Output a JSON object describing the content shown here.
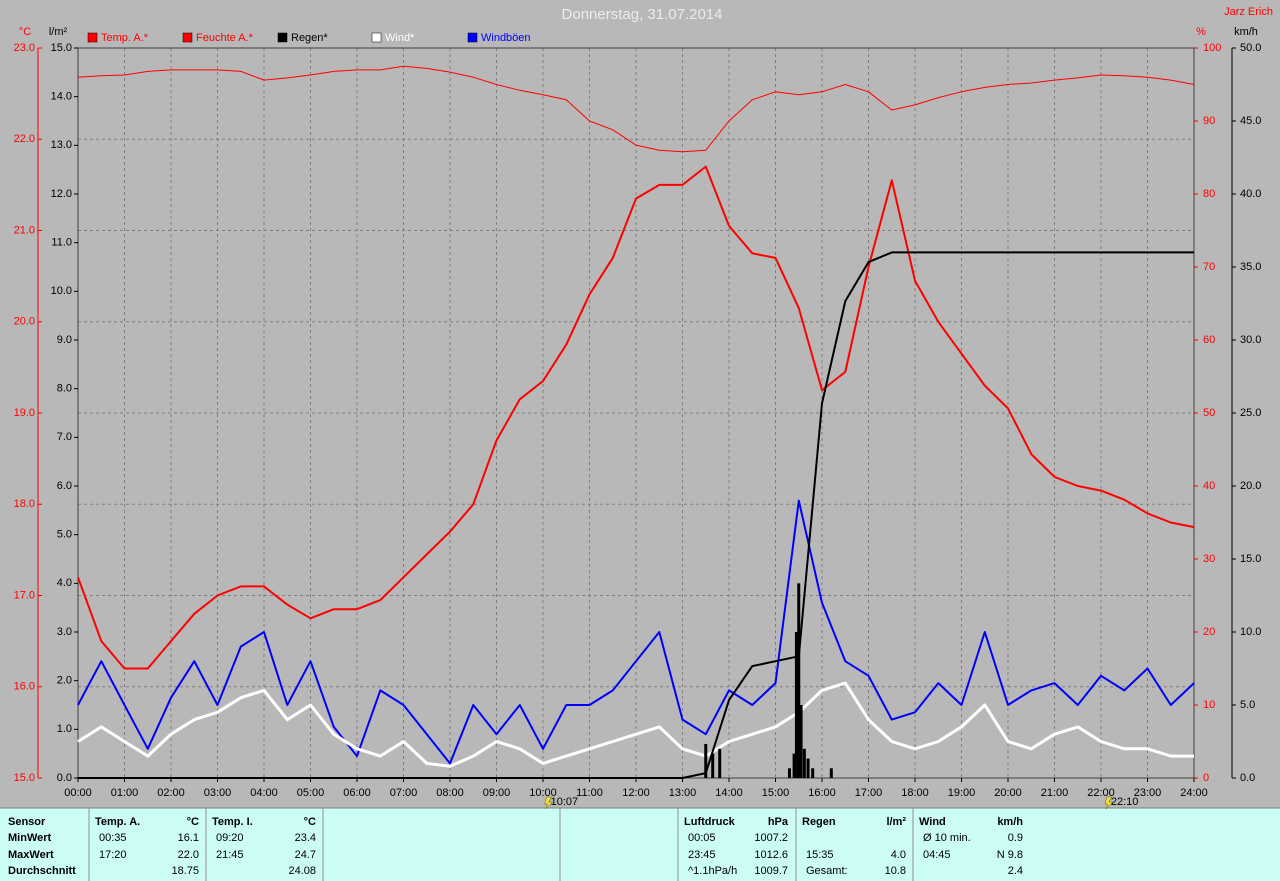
{
  "chart_data": {
    "type": "line",
    "title": "Donnerstag, 31.07.2014",
    "author": "Jarz Erich",
    "ylabel": "°C",
    "y2label": "%",
    "y3label": "l/m²",
    "y4label": "km/h",
    "x": [
      0,
      0.5,
      1,
      1.5,
      2,
      2.5,
      3,
      3.5,
      4,
      4.5,
      5,
      5.5,
      6,
      6.5,
      7,
      7.5,
      8,
      8.5,
      9,
      9.5,
      10,
      10.5,
      11,
      11.5,
      12,
      12.5,
      13,
      13.5,
      14,
      14.5,
      15,
      15.5,
      16,
      16.5,
      17,
      17.5,
      18,
      18.5,
      19,
      19.5,
      20,
      20.5,
      21,
      21.5,
      22,
      22.5,
      23,
      23.5,
      24
    ],
    "xlim": [
      0,
      24
    ],
    "xticks": [
      {
        "value": 0,
        "label": "00:00"
      },
      {
        "value": 1,
        "label": "01:00"
      },
      {
        "value": 2,
        "label": "02:00"
      },
      {
        "value": 3,
        "label": "03:00"
      },
      {
        "value": 4,
        "label": "04:00"
      },
      {
        "value": 5,
        "label": "05:00"
      },
      {
        "value": 6,
        "label": "06:00"
      },
      {
        "value": 7,
        "label": "07:00"
      },
      {
        "value": 8,
        "label": "08:00"
      },
      {
        "value": 9,
        "label": "09:00"
      },
      {
        "value": 10,
        "label": "10:00"
      },
      {
        "value": 11,
        "label": "11:00"
      },
      {
        "value": 12,
        "label": "12:00"
      },
      {
        "value": 13,
        "label": "13:00"
      },
      {
        "value": 14,
        "label": "14:00"
      },
      {
        "value": 15,
        "label": "15:00"
      },
      {
        "value": 16,
        "label": "16:00"
      },
      {
        "value": 17,
        "label": "17:00"
      },
      {
        "value": 18,
        "label": "18:00"
      },
      {
        "value": 19,
        "label": "19:00"
      },
      {
        "value": 20,
        "label": "20:00"
      },
      {
        "value": 21,
        "label": "21:00"
      },
      {
        "value": 22,
        "label": "22:00"
      },
      {
        "value": 23,
        "label": "23:00"
      },
      {
        "value": 24,
        "label": "24:00"
      }
    ],
    "ylim": [
      15,
      23
    ],
    "yticks": [
      {
        "value": 15,
        "label": "15.0"
      },
      {
        "value": 16,
        "label": "16.0"
      },
      {
        "value": 17,
        "label": "17.0"
      },
      {
        "value": 18,
        "label": "18.0"
      },
      {
        "value": 19,
        "label": "19.0"
      },
      {
        "value": 20,
        "label": "20.0"
      },
      {
        "value": 21,
        "label": "21.0"
      },
      {
        "value": 22,
        "label": "22.0"
      },
      {
        "value": 23,
        "label": "23.0"
      }
    ],
    "y2lim": [
      0,
      100
    ],
    "y2ticks": [
      0,
      10,
      20,
      30,
      40,
      50,
      60,
      70,
      80,
      90,
      100
    ],
    "y3lim": [
      0,
      15
    ],
    "y3ticks": [
      {
        "value": 0,
        "label": "0.0"
      },
      {
        "value": 1,
        "label": "1.0"
      },
      {
        "value": 2,
        "label": "2.0"
      },
      {
        "value": 3,
        "label": "3.0"
      },
      {
        "value": 4,
        "label": "4.0"
      },
      {
        "value": 5,
        "label": "5.0"
      },
      {
        "value": 6,
        "label": "6.0"
      },
      {
        "value": 7,
        "label": "7.0"
      },
      {
        "value": 8,
        "label": "8.0"
      },
      {
        "value": 9,
        "label": "9.0"
      },
      {
        "value": 10,
        "label": "10.0"
      },
      {
        "value": 11,
        "label": "11.0"
      },
      {
        "value": 12,
        "label": "12.0"
      },
      {
        "value": 13,
        "label": "13.0"
      },
      {
        "value": 14,
        "label": "14.0"
      },
      {
        "value": 15,
        "label": "15.0"
      }
    ],
    "y4lim": [
      0,
      50
    ],
    "y4ticks": [
      {
        "value": 0,
        "label": "0.0"
      },
      {
        "value": 5,
        "label": "5.0"
      },
      {
        "value": 10,
        "label": "10.0"
      },
      {
        "value": 15,
        "label": "15.0"
      },
      {
        "value": 20,
        "label": "20.0"
      },
      {
        "value": 25,
        "label": "25.0"
      },
      {
        "value": 30,
        "label": "30.0"
      },
      {
        "value": 35,
        "label": "35.0"
      },
      {
        "value": 40,
        "label": "40.0"
      },
      {
        "value": 45,
        "label": "45.0"
      },
      {
        "value": 50,
        "label": "50.0"
      }
    ],
    "grid": true,
    "series": [
      {
        "name": "Temp. A.*",
        "color": "#ff0000",
        "axis": "y",
        "width": 2,
        "values": [
          17.2,
          16.5,
          16.2,
          16.2,
          16.5,
          16.8,
          17.0,
          17.1,
          17.1,
          16.9,
          16.75,
          16.85,
          16.85,
          16.95,
          17.2,
          17.45,
          17.7,
          18.0,
          18.7,
          19.15,
          19.35,
          19.75,
          20.3,
          20.7,
          21.35,
          21.5,
          21.5,
          21.7,
          21.05,
          20.75,
          20.7,
          20.15,
          19.25,
          19.45,
          20.6,
          21.55,
          20.45,
          20.0,
          19.65,
          19.3,
          19.05,
          18.55,
          18.3,
          18.2,
          18.15,
          18.05,
          17.9,
          17.8,
          17.75
        ]
      },
      {
        "name": "Feuchte A.*",
        "color": "#ff0000",
        "axis": "y2",
        "width": 1,
        "values": [
          96,
          96.2,
          96.3,
          96.8,
          97,
          97,
          97,
          96.8,
          95.6,
          95.9,
          96.3,
          96.8,
          97,
          97,
          97.5,
          97.2,
          96.7,
          96,
          95,
          94.2,
          93.6,
          92.9,
          90,
          88.8,
          86.7,
          86,
          85.8,
          86,
          90,
          92.9,
          94,
          93.6,
          94,
          95,
          94,
          91.5,
          92.2,
          93.2,
          94,
          94.6,
          95,
          95.2,
          95.6,
          95.9,
          96.3,
          96.2,
          96,
          95.6,
          95
        ]
      },
      {
        "name": "Regen*",
        "color": "#000000",
        "axis": "y3",
        "width": 2,
        "values": [
          0,
          0,
          0,
          0,
          0,
          0,
          0,
          0,
          0,
          0,
          0,
          0,
          0,
          0,
          0,
          0,
          0,
          0,
          0,
          0,
          0,
          0,
          0,
          0,
          0,
          0,
          0,
          0.1,
          1.6,
          2.3,
          2.4,
          2.5,
          7.7,
          9.8,
          10.6,
          10.8,
          10.8,
          10.8,
          10.8,
          10.8,
          10.8,
          10.8,
          10.8,
          10.8,
          10.8,
          10.8,
          10.8,
          10.8,
          10.8
        ],
        "bars": {
          "x": [
            13.5,
            13.65,
            13.8,
            15.3,
            15.4,
            15.45,
            15.5,
            15.55,
            15.62,
            15.7,
            15.8,
            16.2
          ],
          "values": [
            0.7,
            0.5,
            0.6,
            0.2,
            0.5,
            3.0,
            4.0,
            1.5,
            0.6,
            0.4,
            0.2,
            0.2
          ]
        }
      },
      {
        "name": "Wind*",
        "color": "#ffffff",
        "axis": "y4",
        "width": 3,
        "values": [
          2.5,
          3.5,
          2.5,
          1.5,
          3,
          4,
          4.5,
          5.5,
          6,
          4,
          5,
          3,
          2,
          1.5,
          2.5,
          1,
          0.8,
          1.5,
          2.5,
          2,
          1,
          1.5,
          2,
          2.5,
          3,
          3.5,
          2,
          1.5,
          2.5,
          3,
          3.5,
          4.5,
          6,
          6.5,
          4,
          2.5,
          2,
          2.5,
          3.5,
          5,
          2.5,
          2,
          3,
          3.5,
          2.5,
          2,
          2,
          1.5,
          1.5
        ]
      },
      {
        "name": "Windböen",
        "color": "#0000ff",
        "axis": "y4",
        "width": 2,
        "values": [
          5,
          8,
          5,
          2,
          5.5,
          8,
          5,
          9,
          10,
          5,
          8,
          3.5,
          1.5,
          6,
          5,
          3,
          1,
          5,
          3,
          5,
          2,
          5,
          5,
          6,
          8,
          10,
          4,
          3,
          6,
          5,
          6.5,
          19,
          12,
          8,
          7,
          4,
          4.5,
          6.5,
          5,
          10,
          5,
          6,
          6.5,
          5,
          7,
          6,
          7.5,
          5,
          6.5
        ]
      }
    ],
    "annotations": [
      {
        "x": 10.12,
        "text": "10:07"
      },
      {
        "x": 22.17,
        "text": "22:10"
      }
    ]
  },
  "stats": {
    "header": "Sensor",
    "row_labels": [
      "MinWert",
      "MaxWert",
      "Durchschnitt"
    ],
    "blocks": [
      {
        "title": "Temp. A.",
        "unit": "°C",
        "rows": [
          [
            "00:35",
            "16.1"
          ],
          [
            "17:20",
            "22.0"
          ],
          [
            null,
            "18.75"
          ]
        ]
      },
      {
        "title": "Temp. I.",
        "unit": "°C",
        "rows": [
          [
            "09:20",
            "23.4"
          ],
          [
            "21:45",
            "24.7"
          ],
          [
            null,
            "24.08"
          ]
        ]
      },
      {
        "title": "Luftdruck",
        "unit": "hPa",
        "rows": [
          [
            "00:05",
            "1007.2"
          ],
          [
            "23:45",
            "1012.6"
          ],
          [
            "^1.1hPa/h",
            "1009.7"
          ]
        ]
      },
      {
        "title": "Regen",
        "unit": "l/m²",
        "rows": [
          [
            null,
            null
          ],
          [
            "15:35",
            "4.0"
          ],
          [
            "Gesamt:",
            "10.8"
          ]
        ]
      },
      {
        "title": "Wind",
        "unit": "km/h",
        "rows": [
          [
            "Ø 10 min.",
            "0.9"
          ],
          [
            "04:45",
            "N 9.8"
          ],
          [
            null,
            "2.4"
          ]
        ]
      }
    ]
  }
}
